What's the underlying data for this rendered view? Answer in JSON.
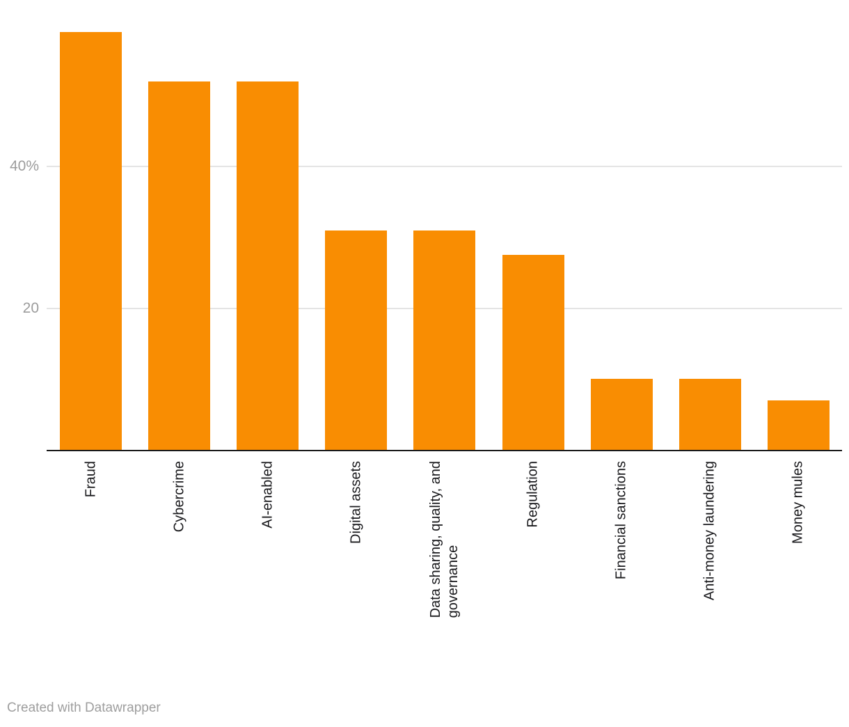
{
  "chart_data": {
    "type": "bar",
    "title": "",
    "xlabel": "",
    "ylabel": "",
    "categories": [
      "Fraud",
      "Cybercrime",
      "AI-enabled",
      "Digital assets",
      "Data sharing, quality, and governance",
      "Regulation",
      "Financial sanctions",
      "Anti-money laundering",
      "Money mules"
    ],
    "category_lines": [
      [
        "Fraud"
      ],
      [
        "Cybercrime"
      ],
      [
        "AI-enabled"
      ],
      [
        "Digital assets"
      ],
      [
        "Data sharing, quality, and",
        "governance"
      ],
      [
        "Regulation"
      ],
      [
        "Financial sanctions"
      ],
      [
        "Anti-money laundering"
      ],
      [
        "Money mules"
      ]
    ],
    "values": [
      59,
      52,
      52,
      31,
      31,
      27.5,
      10,
      10,
      7
    ],
    "unit": "%",
    "ylim": [
      0,
      62.5
    ],
    "yticks": [
      {
        "value": 20,
        "label": "20"
      },
      {
        "value": 40,
        "label": "40%"
      }
    ],
    "grid": true,
    "legend_position": "none"
  },
  "colors": {
    "bar": "#f98d02",
    "gridline": "#e4e4e4",
    "axis": "#1a1a1a",
    "ytick_label": "#9c9c9c"
  },
  "footer": {
    "attribution": "Created with Datawrapper"
  }
}
